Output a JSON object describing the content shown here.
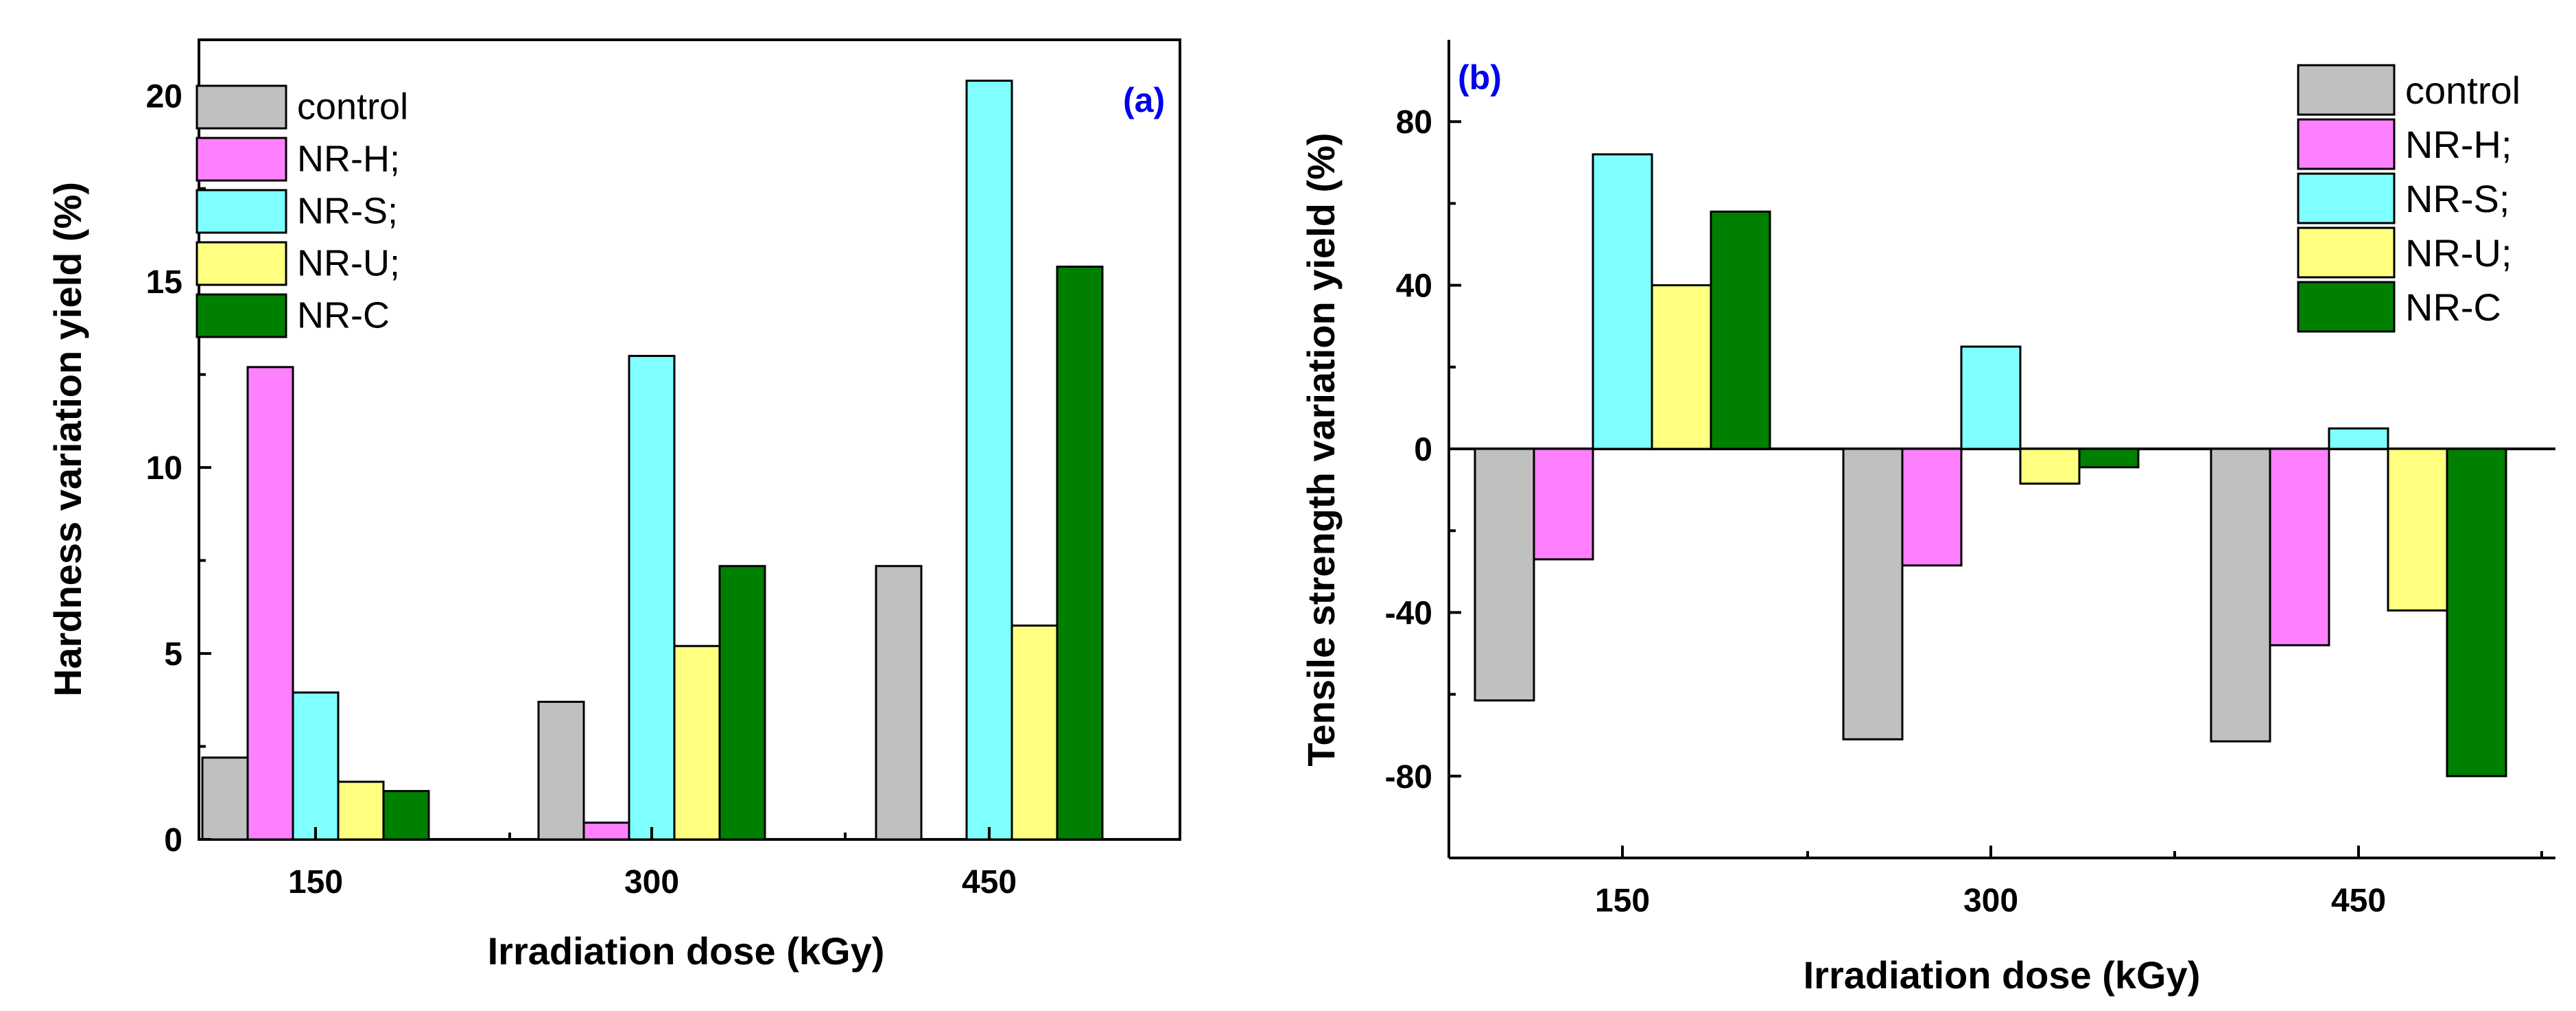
{
  "chart_data": [
    {
      "panel": "(a)",
      "type": "bar",
      "categories": [
        "150",
        "300",
        "450"
      ],
      "series": [
        {
          "name": "control",
          "color": "#c0c0c0",
          "values": [
            2.2,
            3.7,
            7.35
          ]
        },
        {
          "name": "NR-H;",
          "color": "#ff80ff",
          "values": [
            12.7,
            0.45,
            0
          ]
        },
        {
          "name": "NR-S;",
          "color": "#80ffff",
          "values": [
            3.95,
            13.0,
            20.4
          ]
        },
        {
          "name": "NR-U;",
          "color": "#ffff80",
          "values": [
            1.55,
            5.2,
            5.75
          ]
        },
        {
          "name": "NR-C",
          "color": "#008000",
          "values": [
            1.3,
            7.35,
            15.4
          ]
        }
      ],
      "xlabel": "Irradiation dose (kGy)",
      "ylabel": "Hardness variation yield (%)",
      "ylim": [
        0,
        21.5
      ],
      "yticks": [
        "0",
        "5",
        "10",
        "15",
        "20"
      ],
      "legend_position": "top-left",
      "panel_label_color": "#0000ee"
    },
    {
      "panel": "(b)",
      "type": "bar",
      "categories": [
        "150",
        "300",
        "450"
      ],
      "series": [
        {
          "name": "control",
          "color": "#c0c0c0",
          "values": [
            -61.5,
            -71,
            -71.5
          ]
        },
        {
          "name": "NR-H;",
          "color": "#ff80ff",
          "values": [
            -27,
            -28.5,
            -48
          ]
        },
        {
          "name": "NR-S;",
          "color": "#80ffff",
          "values": [
            72,
            25,
            5
          ]
        },
        {
          "name": "NR-U;",
          "color": "#ffff80",
          "values": [
            40,
            -8.5,
            -39.5
          ]
        },
        {
          "name": "NR-C",
          "color": "#008000",
          "values": [
            58,
            -4.5,
            -80
          ]
        }
      ],
      "xlabel": "Irradiation dose (kGy)",
      "ylabel": "Tensile strength variation yield (%)",
      "ylim": [
        -100,
        100
      ],
      "yticks": [
        "-80",
        "-40",
        "0",
        "40",
        "80"
      ],
      "legend_position": "top-right",
      "panel_label_color": "#0000ee"
    }
  ]
}
